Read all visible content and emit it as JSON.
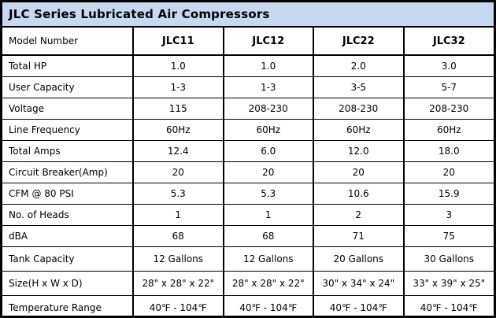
{
  "title": "JLC Series Lubricated Air Compressors",
  "colors": {
    "title_bg": "#c6d9f1",
    "border": "#000000",
    "cell_bg": "#ffffff",
    "text": "#000000"
  },
  "chart_data": {
    "type": "table",
    "title": "JLC Series Lubricated Air Compressors",
    "columns": [
      "Model Number",
      "JLC11",
      "JLC12",
      "JLC22",
      "JLC32"
    ],
    "rows": [
      {
        "label": "Total HP",
        "values": [
          "1.0",
          "1.0",
          "2.0",
          "3.0"
        ]
      },
      {
        "label": "User Capacity",
        "values": [
          "1-3",
          "1-3",
          "3-5",
          "5-7"
        ]
      },
      {
        "label": "Voltage",
        "values": [
          "115",
          "208-230",
          "208-230",
          "208-230"
        ]
      },
      {
        "label": "Line Frequency",
        "values": [
          "60Hz",
          "60Hz",
          "60Hz",
          "60Hz"
        ]
      },
      {
        "label": "Total Amps",
        "values": [
          "12.4",
          "6.0",
          "12.0",
          "18.0"
        ]
      },
      {
        "label": "Circuit Breaker(Amp)",
        "values": [
          "20",
          "20",
          "20",
          "20"
        ]
      },
      {
        "label": "CFM @ 80 PSI",
        "values": [
          "5.3",
          "5.3",
          "10.6",
          "15.9"
        ]
      },
      {
        "label": "No. of Heads",
        "values": [
          "1",
          "1",
          "2",
          "3"
        ]
      },
      {
        "label": "dBA",
        "values": [
          "68",
          "68",
          "71",
          "75"
        ]
      },
      {
        "label": "Tank Capacity",
        "values": [
          "12 Gallons",
          "12 Gallons",
          "20 Gallons",
          "30 Gallons"
        ]
      },
      {
        "label": "Size(H x W x D)",
        "values": [
          "28\" x 28\" x 22\"",
          "28\" x 28\" x 22\"",
          "30\" x 34\" x 24\"",
          "33\" x 39\" x 25\""
        ]
      },
      {
        "label": "Temperature Range",
        "values": [
          "40℉ - 104℉",
          "40℉ - 104℉",
          "40℉ - 104℉",
          "40℉ - 104℉"
        ]
      }
    ]
  }
}
